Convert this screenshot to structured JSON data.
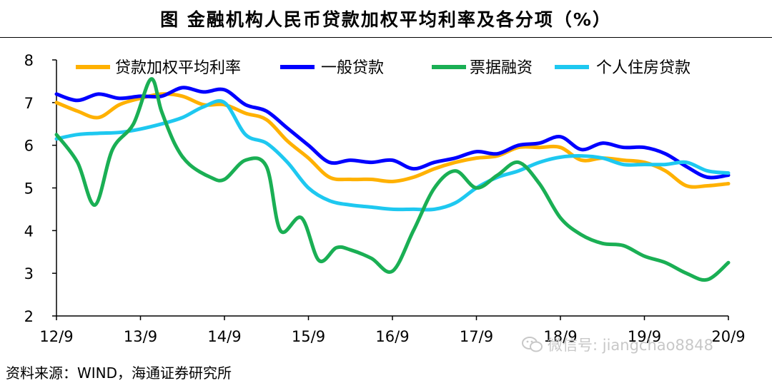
{
  "header": {
    "title": "图  金融机构人民币贷款加权平均利率及各分项（%）"
  },
  "footer": {
    "source": "资料来源：WIND，海通证券研究所"
  },
  "watermark": {
    "text": "微信号: jiangchao8848",
    "icon": "wechat-icon"
  },
  "chart_data": {
    "type": "line",
    "title": "图  金融机构人民币贷款加权平均利率及各分项（%）",
    "xlabel": "",
    "ylabel": "",
    "ylim": [
      2,
      8
    ],
    "xlim": [
      0,
      96
    ],
    "yticks": [
      "2",
      "3",
      "4",
      "5",
      "6",
      "7",
      "8"
    ],
    "xticks": [
      {
        "label": "12/9",
        "x": 0
      },
      {
        "label": "13/9",
        "x": 12
      },
      {
        "label": "14/9",
        "x": 24
      },
      {
        "label": "15/9",
        "x": 36
      },
      {
        "label": "16/9",
        "x": 48
      },
      {
        "label": "17/9",
        "x": 60
      },
      {
        "label": "18/9",
        "x": 72
      },
      {
        "label": "19/9",
        "x": 84
      },
      {
        "label": "20/9",
        "x": 96
      }
    ],
    "legend_position": "top",
    "grid": false,
    "series": [
      {
        "name": "贷款加权平均利率",
        "color": "#FFB100",
        "x": [
          0,
          3,
          6,
          9,
          12,
          15,
          18,
          21,
          24,
          27,
          30,
          33,
          36,
          39,
          42,
          45,
          48,
          51,
          54,
          57,
          60,
          63,
          66,
          69,
          72,
          75,
          78,
          81,
          84,
          87,
          90,
          93,
          96
        ],
        "values": [
          7.0,
          6.8,
          6.65,
          6.95,
          7.1,
          7.2,
          7.15,
          6.95,
          6.95,
          6.75,
          6.6,
          6.1,
          5.7,
          5.25,
          5.2,
          5.2,
          5.15,
          5.25,
          5.45,
          5.6,
          5.7,
          5.75,
          5.95,
          5.95,
          5.95,
          5.65,
          5.7,
          5.65,
          5.6,
          5.4,
          5.05,
          5.05,
          5.1
        ]
      },
      {
        "name": "一般贷款",
        "color": "#0000FF",
        "x": [
          0,
          3,
          6,
          9,
          12,
          15,
          18,
          21,
          24,
          27,
          30,
          33,
          36,
          39,
          42,
          45,
          48,
          51,
          54,
          57,
          60,
          63,
          66,
          69,
          72,
          75,
          78,
          81,
          84,
          87,
          90,
          93,
          96
        ],
        "values": [
          7.2,
          7.05,
          7.2,
          7.1,
          7.15,
          7.15,
          7.35,
          7.25,
          7.3,
          6.95,
          6.8,
          6.4,
          6.0,
          5.6,
          5.65,
          5.6,
          5.65,
          5.45,
          5.6,
          5.7,
          5.85,
          5.8,
          6.0,
          6.05,
          6.2,
          5.9,
          6.05,
          5.95,
          5.95,
          5.8,
          5.5,
          5.25,
          5.3
        ]
      },
      {
        "name": "票据融资",
        "color": "#1AAF54",
        "x": [
          0,
          3,
          5.5,
          8,
          11,
          13.5,
          15,
          17,
          19,
          22,
          24,
          27,
          30,
          32,
          35,
          37.5,
          40,
          42,
          45,
          48,
          51,
          54,
          57,
          60,
          63,
          66,
          69,
          72,
          75,
          78,
          81,
          84,
          87,
          90,
          93,
          96
        ],
        "values": [
          6.25,
          5.6,
          4.6,
          5.9,
          6.5,
          7.55,
          6.8,
          6.0,
          5.55,
          5.25,
          5.2,
          5.65,
          5.5,
          4.0,
          4.3,
          3.3,
          3.6,
          3.55,
          3.35,
          3.05,
          4.0,
          5.0,
          5.4,
          5.0,
          5.3,
          5.6,
          5.1,
          4.3,
          3.9,
          3.7,
          3.65,
          3.4,
          3.25,
          3.0,
          2.85,
          3.25
        ]
      },
      {
        "name": "个人住房贷款",
        "color": "#1EC8F0",
        "x": [
          0,
          3,
          6,
          9,
          12,
          15,
          18,
          21,
          24,
          27,
          30,
          33,
          36,
          39,
          42,
          45,
          48,
          51,
          54,
          57,
          60,
          63,
          66,
          69,
          72,
          75,
          78,
          81,
          84,
          87,
          90,
          93,
          96
        ],
        "values": [
          6.15,
          6.25,
          6.28,
          6.3,
          6.38,
          6.5,
          6.65,
          6.9,
          7.0,
          6.25,
          6.05,
          5.6,
          5.0,
          4.7,
          4.6,
          4.55,
          4.5,
          4.5,
          4.5,
          4.65,
          5.0,
          5.25,
          5.4,
          5.6,
          5.72,
          5.75,
          5.7,
          5.55,
          5.55,
          5.55,
          5.6,
          5.4,
          5.35
        ]
      }
    ]
  }
}
